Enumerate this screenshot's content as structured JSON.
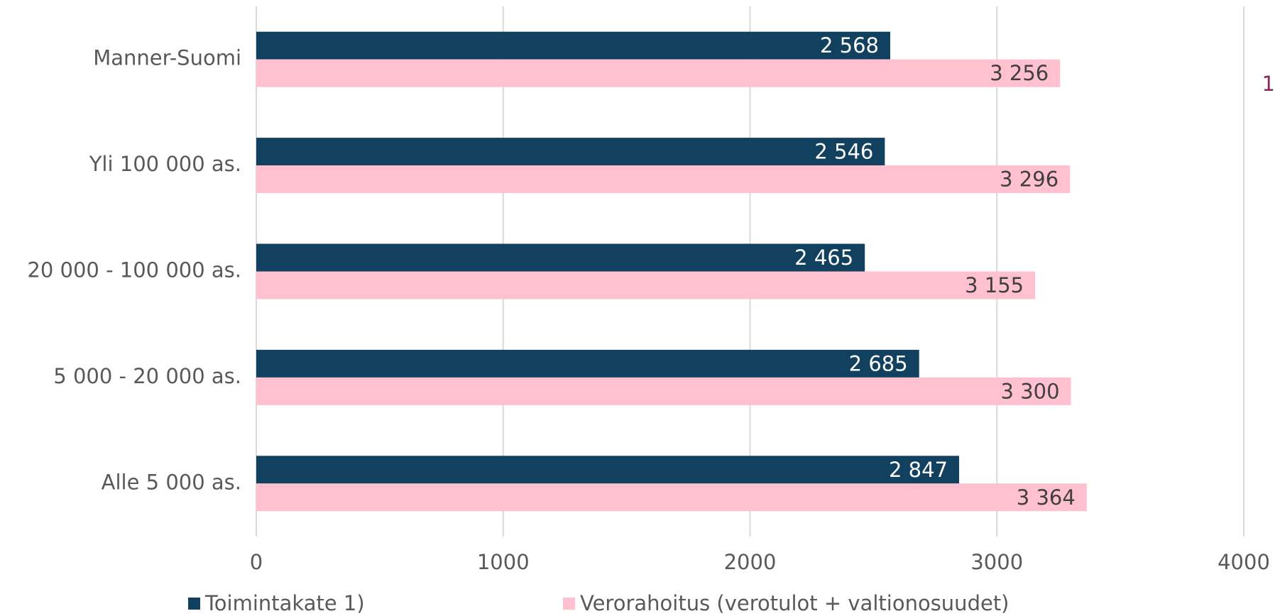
{
  "chart_data": {
    "type": "bar",
    "orientation": "horizontal",
    "categories": [
      "Manner-Suomi",
      "Yli 100 000 as.",
      "20 000 - 100 000 as.",
      "5 000 - 20 000 as.",
      "Alle 5 000 as."
    ],
    "series": [
      {
        "name": "Toimintakate 1)",
        "color": "#12405f",
        "values": [
          2568,
          2546,
          2465,
          2685,
          2847
        ],
        "value_labels": [
          "2 568",
          "2 546",
          "2 465",
          "2 685",
          "2 847"
        ]
      },
      {
        "name": "Verorahoitus (verotulot + valtionosuudet)",
        "color": "#ffc0cf",
        "values": [
          3256,
          3296,
          3155,
          3300,
          3364
        ],
        "value_labels": [
          "3 256",
          "3 296",
          "3 155",
          "3 300",
          "3 364"
        ]
      }
    ],
    "xlim": [
      0,
      4000
    ],
    "xticks": [
      0,
      1000,
      2000,
      3000,
      4000
    ],
    "grid": true,
    "legend": "bottom",
    "annotation": "1"
  }
}
